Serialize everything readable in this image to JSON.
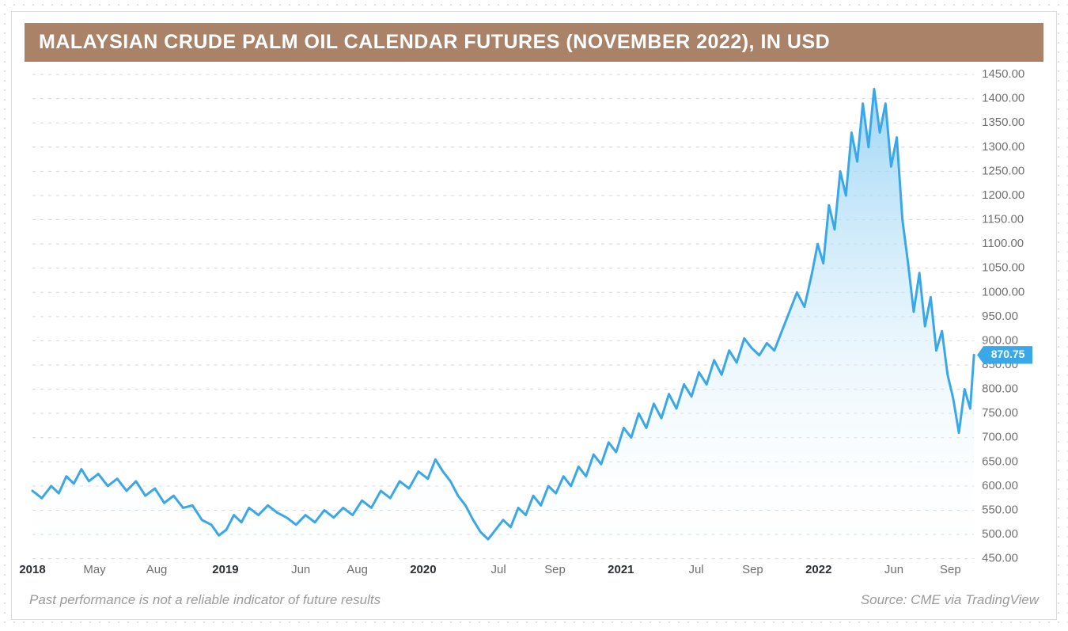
{
  "title": "MALAYSIAN CRUDE PALM OIL CALENDAR FUTURES (NOVEMBER 2022), IN USD",
  "footer": {
    "disclaimer": "Past performance is not a reliable indicator of future results",
    "source": "Source: CME via TradingView"
  },
  "chart": {
    "type": "area",
    "background_color": "#ffffff",
    "title_bar_color": "#a98267",
    "title_text_color": "#ffffff",
    "title_fontsize": 25,
    "grid_color": "#d6d6d6",
    "axis_text_color": "#6f6f6f",
    "x_bold_color": "#2b2f35",
    "footer_text_color": "#9a9a9a",
    "line_color": "#3aa8e8",
    "line_width": 3,
    "area_gradient_top": "#8ecff4",
    "area_gradient_bottom": "#ffffff",
    "price_badge_bg": "#3aa8e8",
    "price_badge_text": "870.75",
    "current_value": 870.75,
    "ylim": [
      450,
      1450
    ],
    "ytick_step": 50,
    "x_ticks": [
      {
        "label": "2018",
        "t": 0.0,
        "bold": true
      },
      {
        "label": "May",
        "t": 0.066,
        "bold": false
      },
      {
        "label": "Aug",
        "t": 0.132,
        "bold": false
      },
      {
        "label": "2019",
        "t": 0.205,
        "bold": true
      },
      {
        "label": "Jun",
        "t": 0.285,
        "bold": false
      },
      {
        "label": "Aug",
        "t": 0.345,
        "bold": false
      },
      {
        "label": "2020",
        "t": 0.415,
        "bold": true
      },
      {
        "label": "Jul",
        "t": 0.495,
        "bold": false
      },
      {
        "label": "Sep",
        "t": 0.555,
        "bold": false
      },
      {
        "label": "2021",
        "t": 0.625,
        "bold": true
      },
      {
        "label": "Jul",
        "t": 0.705,
        "bold": false
      },
      {
        "label": "Sep",
        "t": 0.765,
        "bold": false
      },
      {
        "label": "2022",
        "t": 0.835,
        "bold": true
      },
      {
        "label": "Jun",
        "t": 0.915,
        "bold": false
      },
      {
        "label": "Sep",
        "t": 0.975,
        "bold": false
      }
    ],
    "series": [
      {
        "t": 0.0,
        "v": 590
      },
      {
        "t": 0.01,
        "v": 575
      },
      {
        "t": 0.02,
        "v": 600
      },
      {
        "t": 0.028,
        "v": 585
      },
      {
        "t": 0.036,
        "v": 620
      },
      {
        "t": 0.044,
        "v": 605
      },
      {
        "t": 0.052,
        "v": 635
      },
      {
        "t": 0.06,
        "v": 610
      },
      {
        "t": 0.07,
        "v": 625
      },
      {
        "t": 0.08,
        "v": 600
      },
      {
        "t": 0.09,
        "v": 615
      },
      {
        "t": 0.1,
        "v": 590
      },
      {
        "t": 0.11,
        "v": 610
      },
      {
        "t": 0.12,
        "v": 580
      },
      {
        "t": 0.13,
        "v": 595
      },
      {
        "t": 0.14,
        "v": 565
      },
      {
        "t": 0.15,
        "v": 580
      },
      {
        "t": 0.16,
        "v": 555
      },
      {
        "t": 0.17,
        "v": 560
      },
      {
        "t": 0.18,
        "v": 530
      },
      {
        "t": 0.19,
        "v": 520
      },
      {
        "t": 0.198,
        "v": 498
      },
      {
        "t": 0.206,
        "v": 510
      },
      {
        "t": 0.214,
        "v": 540
      },
      {
        "t": 0.222,
        "v": 525
      },
      {
        "t": 0.23,
        "v": 555
      },
      {
        "t": 0.24,
        "v": 540
      },
      {
        "t": 0.25,
        "v": 560
      },
      {
        "t": 0.26,
        "v": 545
      },
      {
        "t": 0.27,
        "v": 535
      },
      {
        "t": 0.28,
        "v": 520
      },
      {
        "t": 0.29,
        "v": 540
      },
      {
        "t": 0.3,
        "v": 525
      },
      {
        "t": 0.31,
        "v": 550
      },
      {
        "t": 0.32,
        "v": 535
      },
      {
        "t": 0.33,
        "v": 555
      },
      {
        "t": 0.34,
        "v": 540
      },
      {
        "t": 0.35,
        "v": 570
      },
      {
        "t": 0.36,
        "v": 555
      },
      {
        "t": 0.37,
        "v": 590
      },
      {
        "t": 0.38,
        "v": 575
      },
      {
        "t": 0.39,
        "v": 610
      },
      {
        "t": 0.4,
        "v": 595
      },
      {
        "t": 0.41,
        "v": 630
      },
      {
        "t": 0.42,
        "v": 615
      },
      {
        "t": 0.428,
        "v": 655
      },
      {
        "t": 0.436,
        "v": 630
      },
      {
        "t": 0.444,
        "v": 610
      },
      {
        "t": 0.452,
        "v": 580
      },
      {
        "t": 0.46,
        "v": 560
      },
      {
        "t": 0.468,
        "v": 530
      },
      {
        "t": 0.476,
        "v": 505
      },
      {
        "t": 0.484,
        "v": 490
      },
      {
        "t": 0.492,
        "v": 510
      },
      {
        "t": 0.5,
        "v": 530
      },
      {
        "t": 0.508,
        "v": 515
      },
      {
        "t": 0.516,
        "v": 555
      },
      {
        "t": 0.524,
        "v": 540
      },
      {
        "t": 0.532,
        "v": 580
      },
      {
        "t": 0.54,
        "v": 560
      },
      {
        "t": 0.548,
        "v": 600
      },
      {
        "t": 0.556,
        "v": 585
      },
      {
        "t": 0.564,
        "v": 620
      },
      {
        "t": 0.572,
        "v": 600
      },
      {
        "t": 0.58,
        "v": 640
      },
      {
        "t": 0.588,
        "v": 620
      },
      {
        "t": 0.596,
        "v": 665
      },
      {
        "t": 0.604,
        "v": 645
      },
      {
        "t": 0.612,
        "v": 690
      },
      {
        "t": 0.62,
        "v": 670
      },
      {
        "t": 0.628,
        "v": 720
      },
      {
        "t": 0.636,
        "v": 700
      },
      {
        "t": 0.644,
        "v": 750
      },
      {
        "t": 0.652,
        "v": 720
      },
      {
        "t": 0.66,
        "v": 770
      },
      {
        "t": 0.668,
        "v": 740
      },
      {
        "t": 0.676,
        "v": 790
      },
      {
        "t": 0.684,
        "v": 760
      },
      {
        "t": 0.692,
        "v": 810
      },
      {
        "t": 0.7,
        "v": 785
      },
      {
        "t": 0.708,
        "v": 835
      },
      {
        "t": 0.716,
        "v": 810
      },
      {
        "t": 0.724,
        "v": 860
      },
      {
        "t": 0.732,
        "v": 830
      },
      {
        "t": 0.74,
        "v": 880
      },
      {
        "t": 0.748,
        "v": 855
      },
      {
        "t": 0.756,
        "v": 905
      },
      {
        "t": 0.764,
        "v": 885
      },
      {
        "t": 0.772,
        "v": 870
      },
      {
        "t": 0.78,
        "v": 895
      },
      {
        "t": 0.788,
        "v": 880
      },
      {
        "t": 0.796,
        "v": 920
      },
      {
        "t": 0.804,
        "v": 960
      },
      {
        "t": 0.812,
        "v": 1000
      },
      {
        "t": 0.82,
        "v": 970
      },
      {
        "t": 0.828,
        "v": 1040
      },
      {
        "t": 0.834,
        "v": 1100
      },
      {
        "t": 0.84,
        "v": 1060
      },
      {
        "t": 0.846,
        "v": 1180
      },
      {
        "t": 0.852,
        "v": 1130
      },
      {
        "t": 0.858,
        "v": 1250
      },
      {
        "t": 0.864,
        "v": 1200
      },
      {
        "t": 0.87,
        "v": 1330
      },
      {
        "t": 0.876,
        "v": 1270
      },
      {
        "t": 0.882,
        "v": 1390
      },
      {
        "t": 0.888,
        "v": 1300
      },
      {
        "t": 0.894,
        "v": 1420
      },
      {
        "t": 0.9,
        "v": 1330
      },
      {
        "t": 0.906,
        "v": 1390
      },
      {
        "t": 0.912,
        "v": 1260
      },
      {
        "t": 0.918,
        "v": 1320
      },
      {
        "t": 0.924,
        "v": 1150
      },
      {
        "t": 0.93,
        "v": 1060
      },
      {
        "t": 0.936,
        "v": 960
      },
      {
        "t": 0.942,
        "v": 1040
      },
      {
        "t": 0.948,
        "v": 930
      },
      {
        "t": 0.954,
        "v": 990
      },
      {
        "t": 0.96,
        "v": 880
      },
      {
        "t": 0.966,
        "v": 920
      },
      {
        "t": 0.972,
        "v": 830
      },
      {
        "t": 0.978,
        "v": 780
      },
      {
        "t": 0.984,
        "v": 710
      },
      {
        "t": 0.99,
        "v": 800
      },
      {
        "t": 0.996,
        "v": 760
      },
      {
        "t": 1.0,
        "v": 870.75
      }
    ]
  }
}
